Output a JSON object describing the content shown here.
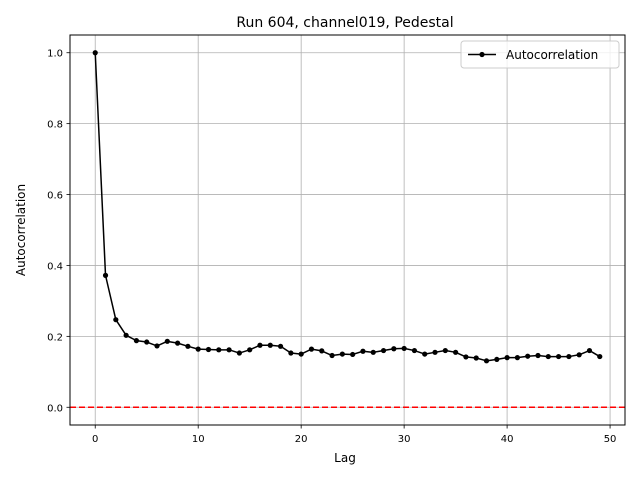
{
  "chart_data": {
    "type": "line",
    "title": "Run 604, channel019, Pedestal",
    "xlabel": "Lag",
    "ylabel": "Autocorrelation",
    "xlim": [
      -2.45,
      51.45
    ],
    "ylim": [
      -0.05,
      1.05
    ],
    "xticks": [
      0,
      10,
      20,
      30,
      40,
      50
    ],
    "yticks": [
      0.0,
      0.2,
      0.4,
      0.6,
      0.8,
      1.0
    ],
    "xtick_labels": [
      "0",
      "10",
      "20",
      "30",
      "40",
      "50"
    ],
    "ytick_labels": [
      "0.0",
      "0.2",
      "0.4",
      "0.6",
      "0.8",
      "1.0"
    ],
    "grid": true,
    "legend_position": "top-right",
    "series": [
      {
        "name": "Autocorrelation",
        "color": "#000000",
        "marker": "circle",
        "x": [
          0,
          1,
          2,
          3,
          4,
          5,
          6,
          7,
          8,
          9,
          10,
          11,
          12,
          13,
          14,
          15,
          16,
          17,
          18,
          19,
          20,
          21,
          22,
          23,
          24,
          25,
          26,
          27,
          28,
          29,
          30,
          31,
          32,
          33,
          34,
          35,
          36,
          37,
          38,
          39,
          40,
          41,
          42,
          43,
          44,
          45,
          46,
          47,
          48,
          49
        ],
        "y": [
          1.0,
          0.372,
          0.247,
          0.203,
          0.188,
          0.184,
          0.173,
          0.186,
          0.181,
          0.172,
          0.164,
          0.163,
          0.162,
          0.162,
          0.153,
          0.162,
          0.175,
          0.175,
          0.172,
          0.153,
          0.15,
          0.164,
          0.159,
          0.146,
          0.15,
          0.149,
          0.158,
          0.155,
          0.16,
          0.165,
          0.166,
          0.16,
          0.15,
          0.155,
          0.16,
          0.155,
          0.142,
          0.139,
          0.131,
          0.135,
          0.14,
          0.14,
          0.144,
          0.146,
          0.143,
          0.143,
          0.143,
          0.148,
          0.16,
          0.143
        ]
      }
    ],
    "reference_line": {
      "y": 0.0,
      "color": "#ff0000",
      "style": "dashed"
    }
  }
}
